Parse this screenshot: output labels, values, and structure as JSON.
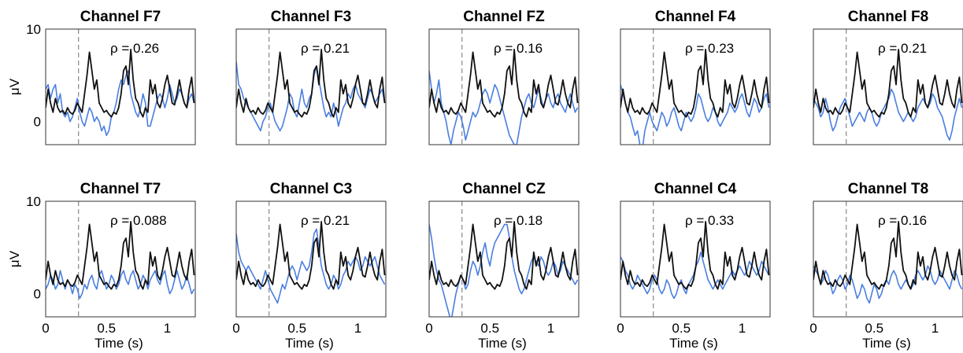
{
  "chart_data": {
    "type": "line",
    "layout": "2x5 small multiples",
    "ylabel": "μV",
    "xlabel": "Time (s)",
    "xlim": [
      0,
      1.23
    ],
    "ylim": [
      -2.5,
      10
    ],
    "xticks": [
      "0",
      "0.5",
      "1"
    ],
    "xtick_values": [
      0,
      0.5,
      1
    ],
    "yticks": [
      "0",
      "10"
    ],
    "ytick_values": [
      0,
      10
    ],
    "stimulus_line_x": 0.27,
    "colors": {
      "black_series": "#111111",
      "blue_series": "#4a7fe0",
      "marker_line": "#888888"
    },
    "black_series": {
      "x": [
        0,
        0.02,
        0.04,
        0.06,
        0.08,
        0.1,
        0.12,
        0.14,
        0.16,
        0.18,
        0.2,
        0.22,
        0.24,
        0.26,
        0.28,
        0.3,
        0.32,
        0.34,
        0.36,
        0.38,
        0.4,
        0.42,
        0.44,
        0.46,
        0.48,
        0.5,
        0.52,
        0.54,
        0.56,
        0.58,
        0.6,
        0.62,
        0.64,
        0.66,
        0.68,
        0.7,
        0.72,
        0.74,
        0.76,
        0.78,
        0.8,
        0.82,
        0.84,
        0.86,
        0.88,
        0.9,
        0.92,
        0.94,
        0.96,
        0.98,
        1.0,
        1.02,
        1.04,
        1.06,
        1.08,
        1.1,
        1.12,
        1.14,
        1.16,
        1.18,
        1.2,
        1.22
      ],
      "y": [
        1.5,
        3.5,
        2.0,
        1.0,
        2.5,
        1.5,
        1.0,
        1.2,
        0.8,
        1.5,
        1.0,
        0.8,
        1.2,
        2.0,
        1.5,
        1.0,
        3.0,
        5.0,
        7.5,
        5.5,
        3.5,
        4.5,
        2.0,
        1.5,
        1.0,
        1.2,
        0.8,
        0.5,
        1.0,
        0.8,
        1.5,
        3.0,
        5.5,
        6.0,
        4.0,
        7.8,
        4.5,
        2.5,
        2.0,
        1.0,
        0.5,
        1.5,
        1.0,
        4.5,
        3.0,
        4.0,
        2.0,
        1.5,
        2.5,
        4.0,
        5.0,
        3.5,
        2.0,
        1.8,
        3.0,
        4.5,
        3.0,
        2.0,
        1.5,
        3.5,
        4.8,
        2.0
      ]
    },
    "panels": [
      {
        "title": "Channel F7",
        "rho": "ρ = 0.26",
        "blue_y": [
          3.5,
          4.0,
          2.5,
          3.5,
          4.0,
          2.0,
          3.0,
          1.0,
          0.5,
          1.0,
          0.0,
          0.5,
          1.5,
          2.5,
          1.0,
          0.0,
          -0.5,
          0.5,
          1.5,
          1.0,
          0.0,
          0.5,
          0.0,
          -1.0,
          -0.5,
          -1.5,
          -1.0,
          0.5,
          1.0,
          2.0,
          3.5,
          4.5,
          4.0,
          5.0,
          5.5,
          3.0,
          2.0,
          1.0,
          0.5,
          1.5,
          3.0,
          2.0,
          -0.5,
          -0.5,
          0.5,
          1.5,
          2.5,
          3.0,
          2.5,
          1.5,
          2.5,
          4.0,
          3.0,
          2.0,
          2.5,
          3.5,
          3.0,
          2.0,
          1.5,
          2.5,
          3.0,
          2.0
        ]
      },
      {
        "title": "Channel F3",
        "rho": "ρ = 0.21",
        "blue_y": [
          6.5,
          4.0,
          3.5,
          2.5,
          2.0,
          1.5,
          1.0,
          0.5,
          0.0,
          -0.5,
          -1.0,
          0.0,
          0.5,
          1.5,
          2.0,
          1.0,
          0.0,
          -0.5,
          -1.0,
          -0.5,
          0.5,
          1.5,
          3.0,
          2.5,
          1.0,
          0.5,
          2.0,
          3.5,
          2.0,
          1.5,
          2.5,
          3.0,
          5.0,
          6.0,
          4.5,
          3.0,
          1.5,
          0.5,
          1.0,
          0.5,
          2.0,
          1.0,
          -0.5,
          0.5,
          1.5,
          2.0,
          3.0,
          2.5,
          3.5,
          4.0,
          3.0,
          2.5,
          2.0,
          1.5,
          2.5,
          3.5,
          3.0,
          2.0,
          2.5,
          3.0,
          3.5,
          2.0
        ]
      },
      {
        "title": "Channel FZ",
        "rho": "ρ = 0.16",
        "blue_y": [
          5.5,
          3.5,
          2.0,
          3.0,
          4.5,
          2.0,
          1.0,
          0.0,
          -1.5,
          -2.5,
          -1.0,
          0.0,
          1.0,
          0.5,
          -0.5,
          -2.0,
          -1.0,
          0.0,
          1.0,
          0.5,
          1.0,
          2.0,
          3.0,
          3.5,
          3.0,
          2.0,
          3.0,
          4.0,
          3.5,
          2.5,
          1.5,
          0.5,
          -0.5,
          -1.5,
          -2.0,
          -2.5,
          -2.5,
          -1.0,
          0.5,
          1.5,
          2.5,
          3.0,
          2.0,
          1.5,
          2.5,
          3.5,
          2.5,
          1.5,
          2.5,
          3.0,
          2.0,
          1.5,
          2.5,
          3.0,
          2.0,
          1.5,
          1.0,
          2.0,
          3.0,
          2.0,
          1.0,
          1.5
        ]
      },
      {
        "title": "Channel F4",
        "rho": "ρ = 0.23",
        "blue_y": [
          4.0,
          3.0,
          2.0,
          1.0,
          0.5,
          -0.5,
          -1.5,
          -1.0,
          -2.5,
          -3.0,
          -1.0,
          0.0,
          1.0,
          0.0,
          -0.5,
          -1.0,
          0.0,
          1.0,
          0.5,
          -0.5,
          0.0,
          1.0,
          1.5,
          0.5,
          -0.5,
          -1.0,
          0.0,
          1.0,
          0.5,
          0.0,
          0.5,
          1.5,
          3.0,
          2.5,
          1.5,
          0.5,
          0.0,
          0.5,
          1.5,
          1.0,
          0.0,
          -0.5,
          0.0,
          0.5,
          1.0,
          2.0,
          1.5,
          1.0,
          1.5,
          2.5,
          3.0,
          2.0,
          1.0,
          0.5,
          1.5,
          2.5,
          2.0,
          1.0,
          1.5,
          2.5,
          3.0,
          1.5
        ]
      },
      {
        "title": "Channel F8",
        "rho": "ρ = 0.21",
        "blue_y": [
          2.5,
          2.0,
          1.5,
          0.5,
          1.0,
          2.5,
          1.5,
          0.0,
          -1.0,
          -0.5,
          0.5,
          1.5,
          2.0,
          2.5,
          1.5,
          0.5,
          -0.5,
          0.0,
          0.5,
          1.0,
          0.5,
          0.0,
          1.0,
          1.5,
          1.0,
          0.0,
          -0.5,
          0.0,
          1.0,
          1.5,
          2.0,
          2.5,
          3.5,
          3.0,
          2.0,
          1.0,
          0.5,
          0.0,
          0.5,
          1.0,
          0.5,
          0.0,
          0.5,
          1.5,
          2.0,
          2.5,
          2.0,
          1.5,
          2.0,
          3.0,
          2.5,
          1.5,
          1.0,
          0.5,
          -0.5,
          -1.5,
          -2.0,
          -1.0,
          0.5,
          1.5,
          2.5,
          1.5
        ]
      },
      {
        "title": "Channel T7",
        "rho": "ρ = 0.088",
        "blue_y": [
          0.5,
          1.0,
          2.0,
          1.5,
          0.5,
          1.0,
          2.5,
          1.5,
          0.5,
          1.5,
          1.0,
          0.0,
          1.0,
          0.5,
          -0.5,
          0.0,
          1.0,
          0.5,
          1.5,
          2.0,
          1.0,
          0.5,
          2.0,
          2.5,
          1.5,
          0.5,
          1.0,
          2.0,
          1.5,
          0.5,
          1.0,
          2.0,
          2.5,
          1.5,
          1.0,
          2.0,
          2.5,
          1.5,
          0.5,
          1.0,
          2.0,
          1.5,
          0.5,
          1.5,
          2.0,
          2.5,
          1.5,
          1.0,
          2.0,
          2.5,
          1.0,
          0.0,
          0.5,
          1.5,
          2.5,
          1.5,
          0.5,
          1.0,
          2.0,
          1.0,
          0.0,
          0.5
        ]
      },
      {
        "title": "Channel C3",
        "rho": "ρ = 0.21",
        "blue_y": [
          6.5,
          4.5,
          3.5,
          3.0,
          2.5,
          3.0,
          2.5,
          2.0,
          1.5,
          1.0,
          0.5,
          1.5,
          2.5,
          1.5,
          0.5,
          0.0,
          -0.5,
          -1.0,
          0.0,
          1.0,
          0.5,
          1.5,
          2.5,
          3.0,
          2.5,
          1.5,
          2.5,
          3.5,
          3.0,
          2.5,
          3.0,
          4.5,
          6.5,
          7.0,
          5.0,
          3.0,
          2.0,
          1.0,
          0.5,
          1.0,
          2.0,
          1.5,
          0.5,
          1.0,
          2.0,
          2.5,
          3.5,
          3.0,
          3.5,
          4.0,
          3.5,
          2.5,
          3.0,
          4.0,
          3.5,
          3.0,
          3.5,
          4.0,
          3.0,
          2.0,
          1.5,
          1.0
        ]
      },
      {
        "title": "Channel CZ",
        "rho": "ρ = 0.18",
        "blue_y": [
          7.5,
          6.0,
          4.0,
          2.5,
          1.5,
          1.0,
          0.0,
          -1.0,
          -2.0,
          -3.0,
          -1.5,
          0.0,
          1.0,
          2.0,
          1.5,
          0.5,
          1.0,
          2.5,
          3.5,
          3.0,
          2.0,
          3.0,
          4.5,
          5.5,
          4.0,
          3.0,
          4.5,
          5.5,
          6.0,
          6.5,
          7.0,
          7.5,
          7.5,
          6.0,
          4.0,
          2.5,
          1.5,
          0.5,
          0.0,
          0.5,
          1.5,
          2.5,
          3.5,
          4.0,
          3.5,
          3.0,
          4.0,
          3.5,
          2.5,
          2.0,
          2.5,
          3.5,
          3.0,
          2.0,
          2.5,
          3.5,
          3.0,
          2.5,
          2.0,
          1.5,
          1.0,
          1.5
        ]
      },
      {
        "title": "Channel C4",
        "rho": "ρ = 0.33",
        "blue_y": [
          4.0,
          3.5,
          2.5,
          2.0,
          1.0,
          0.5,
          1.0,
          2.0,
          1.5,
          1.0,
          0.5,
          0.0,
          0.5,
          1.5,
          2.0,
          1.5,
          0.5,
          0.0,
          0.5,
          1.5,
          1.0,
          0.0,
          -0.5,
          0.0,
          1.0,
          1.5,
          0.5,
          0.0,
          1.0,
          1.5,
          2.0,
          3.0,
          3.5,
          4.5,
          3.5,
          2.5,
          1.5,
          1.0,
          0.5,
          1.0,
          1.5,
          1.0,
          0.5,
          1.0,
          1.5,
          2.0,
          2.5,
          2.0,
          2.5,
          3.0,
          2.5,
          2.0,
          2.5,
          3.5,
          3.0,
          2.5,
          2.0,
          2.5,
          3.5,
          3.0,
          2.5,
          2.0
        ]
      },
      {
        "title": "Channel T8",
        "rho": "ρ = 0.16",
        "blue_y": [
          3.0,
          2.5,
          2.0,
          1.0,
          1.5,
          2.5,
          2.0,
          1.0,
          0.0,
          0.5,
          1.5,
          2.0,
          1.5,
          0.5,
          1.0,
          2.0,
          1.5,
          0.5,
          -0.5,
          0.0,
          1.0,
          0.5,
          -0.5,
          -1.0,
          0.0,
          1.0,
          0.5,
          -0.5,
          0.0,
          1.0,
          1.5,
          1.0,
          2.0,
          2.5,
          2.0,
          1.0,
          0.5,
          1.0,
          1.5,
          1.0,
          0.5,
          1.0,
          2.0,
          2.5,
          2.0,
          1.5,
          2.0,
          3.0,
          2.5,
          1.5,
          1.0,
          1.5,
          2.5,
          2.0,
          1.5,
          1.0,
          0.5,
          1.5,
          2.5,
          2.0,
          1.0,
          0.5
        ]
      }
    ]
  }
}
